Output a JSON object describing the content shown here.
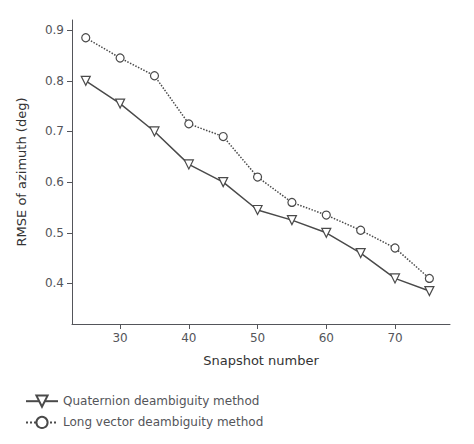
{
  "chart_data": {
    "type": "line",
    "xlabel": "Snapshot number",
    "ylabel": "RMSE of azimuth (deg)",
    "xlim": [
      23,
      78
    ],
    "ylim": [
      0.32,
      0.92
    ],
    "xticks": [
      30,
      40,
      50,
      60,
      70
    ],
    "yticks": [
      0.4,
      0.5,
      0.6,
      0.7,
      0.8,
      0.9
    ],
    "grid": false,
    "legend": "lower left",
    "series": [
      {
        "name": "Quaternion deambiguity method",
        "color": "#4a4a4a",
        "marker": "triangle_down",
        "line_style": "solid",
        "x": [
          25,
          30,
          35,
          40,
          45,
          50,
          55,
          60,
          65,
          70,
          75
        ],
        "values": [
          0.8,
          0.755,
          0.7,
          0.635,
          0.6,
          0.545,
          0.525,
          0.5,
          0.46,
          0.41,
          0.385
        ]
      },
      {
        "name": "Long vector deambiguity method",
        "color": "#4a4a4a",
        "marker": "circle",
        "line_style": "dotted",
        "x": [
          25,
          30,
          35,
          40,
          45,
          50,
          55,
          60,
          65,
          70,
          75
        ],
        "values": [
          0.885,
          0.845,
          0.81,
          0.715,
          0.69,
          0.61,
          0.56,
          0.535,
          0.505,
          0.47,
          0.41
        ]
      }
    ]
  }
}
